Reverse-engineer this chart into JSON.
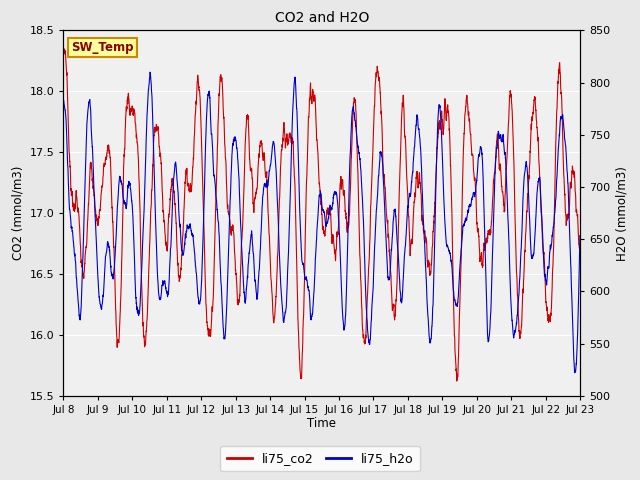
{
  "title": "CO2 and H2O",
  "xlabel": "Time",
  "ylabel_left": "CO2 (mmol/m3)",
  "ylabel_right": "H2O (mmol/m3)",
  "ylim_left": [
    15.5,
    18.5
  ],
  "ylim_right": [
    500,
    850
  ],
  "yticks_left": [
    15.5,
    16.0,
    16.5,
    17.0,
    17.5,
    18.0,
    18.5
  ],
  "yticks_right": [
    500,
    550,
    600,
    650,
    700,
    750,
    800,
    850
  ],
  "xtick_labels": [
    "Jul 8",
    "Jul 9",
    "Jul 10",
    "Jul 11",
    "Jul 12",
    "Jul 13",
    "Jul 14",
    "Jul 15",
    "Jul 16",
    "Jul 17",
    "Jul 18",
    "Jul 19",
    "Jul 20",
    "Jul 21",
    "Jul 22",
    "Jul 23"
  ],
  "co2_color": "#CC0000",
  "h2o_color": "#0000CC",
  "line_width": 0.8,
  "bg_color": "#E8E8E8",
  "plot_bg_color": "#E8E8E8",
  "plot_inner_bg": "#F0F0F0",
  "legend_label_co2": "li75_co2",
  "legend_label_h2o": "li75_h2o",
  "annotation_text": "SW_Temp",
  "annotation_bg": "#FFFF99",
  "annotation_edge": "#CC8800",
  "annotation_color": "#880000",
  "figwidth": 6.4,
  "figheight": 4.8,
  "dpi": 100
}
